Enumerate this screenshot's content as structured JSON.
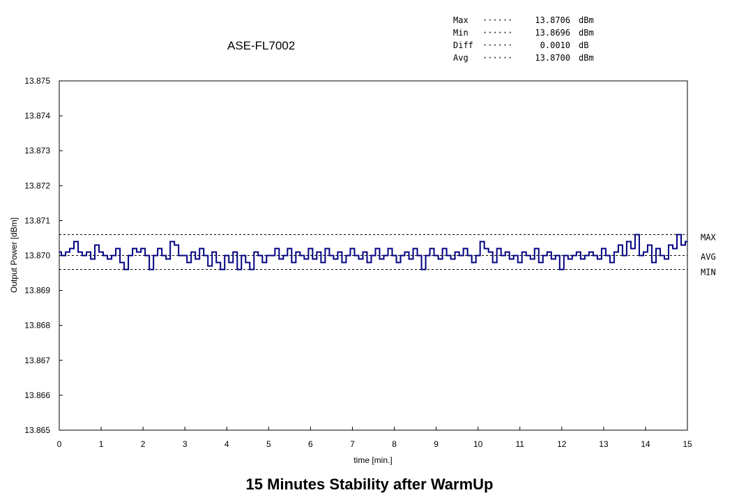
{
  "stats": [
    {
      "label": "Max",
      "dots": "······",
      "value": "13.8706",
      "unit": "dBm"
    },
    {
      "label": "Min",
      "dots": "······",
      "value": "13.8696",
      "unit": "dBm"
    },
    {
      "label": "Diff",
      "dots": "······",
      "value": "0.0010",
      "unit": "dB"
    },
    {
      "label": "Avg",
      "dots": "······",
      "value": "13.8700",
      "unit": "dBm"
    }
  ],
  "chart_data": {
    "type": "line",
    "title": "ASE-FL7002",
    "caption": "15 Minutes Stability after WarmUp",
    "xlabel": "time [min.]",
    "ylabel": "Output Power [dBm]",
    "xlim": [
      0,
      15
    ],
    "ylim": [
      13.865,
      13.875
    ],
    "xticks": [
      "0",
      "1",
      "2",
      "3",
      "4",
      "5",
      "6",
      "7",
      "8",
      "9",
      "10",
      "11",
      "12",
      "13",
      "14",
      "15"
    ],
    "yticks": [
      "13.865",
      "13.866",
      "13.867",
      "13.868",
      "13.869",
      "13.870",
      "13.871",
      "13.872",
      "13.873",
      "13.874",
      "13.875"
    ],
    "reference_lines": [
      {
        "name": "MAX",
        "value": 13.8706
      },
      {
        "name": "AVG",
        "value": 13.87
      },
      {
        "name": "MIN",
        "value": 13.8696
      }
    ],
    "series": [
      {
        "name": "Output Power",
        "color": "#000080",
        "x_step": 0.1,
        "values": [
          13.8701,
          13.87,
          13.8701,
          13.8702,
          13.8704,
          13.8701,
          13.87,
          13.8701,
          13.8699,
          13.8703,
          13.8701,
          13.87,
          13.8699,
          13.87,
          13.8702,
          13.8698,
          13.8696,
          13.87,
          13.8702,
          13.8701,
          13.8702,
          13.87,
          13.8696,
          13.87,
          13.8702,
          13.87,
          13.8699,
          13.8704,
          13.8703,
          13.87,
          13.87,
          13.8698,
          13.8701,
          13.8699,
          13.8702,
          13.87,
          13.8697,
          13.8701,
          13.8698,
          13.8696,
          13.87,
          13.8698,
          13.8701,
          13.8696,
          13.87,
          13.8698,
          13.8696,
          13.8701,
          13.87,
          13.8698,
          13.87,
          13.87,
          13.8702,
          13.8699,
          13.87,
          13.8702,
          13.8698,
          13.8701,
          13.87,
          13.8699,
          13.8702,
          13.8699,
          13.8701,
          13.8698,
          13.8702,
          13.87,
          13.8699,
          13.8701,
          13.8698,
          13.87,
          13.8702,
          13.87,
          13.8699,
          13.8701,
          13.8698,
          13.87,
          13.8702,
          13.8699,
          13.87,
          13.8702,
          13.87,
          13.8698,
          13.87,
          13.8701,
          13.8699,
          13.8702,
          13.87,
          13.8696,
          13.87,
          13.8702,
          13.87,
          13.8699,
          13.8702,
          13.87,
          13.8699,
          13.8701,
          13.87,
          13.8702,
          13.87,
          13.8698,
          13.87,
          13.8704,
          13.8702,
          13.8701,
          13.8698,
          13.8702,
          13.87,
          13.8701,
          13.8699,
          13.87,
          13.8698,
          13.8701,
          13.87,
          13.8699,
          13.8702,
          13.8698,
          13.87,
          13.8701,
          13.8699,
          13.87,
          13.8696,
          13.87,
          13.8699,
          13.87,
          13.8701,
          13.8699,
          13.87,
          13.8701,
          13.87,
          13.8699,
          13.8702,
          13.87,
          13.8698,
          13.8701,
          13.8703,
          13.87,
          13.8704,
          13.8702,
          13.8706,
          13.87,
          13.8701,
          13.8703,
          13.8698,
          13.8702,
          13.87,
          13.8699,
          13.8703,
          13.8702,
          13.8706,
          13.8703,
          13.8704
        ]
      }
    ]
  }
}
